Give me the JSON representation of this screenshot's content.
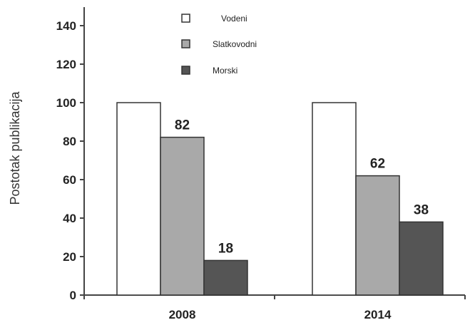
{
  "chart_data": {
    "type": "bar",
    "title": "",
    "xlabel": "",
    "ylabel": "Postotak publikacija",
    "categories": [
      "2008",
      "2014"
    ],
    "series": [
      {
        "name": "Vodeni",
        "values": [
          100,
          100
        ],
        "color": "#ffffff"
      },
      {
        "name": "Slatkovodni",
        "values": [
          82,
          62
        ],
        "color": "#a9a9a9"
      },
      {
        "name": "Morski",
        "values": [
          18,
          38
        ],
        "color": "#555555"
      }
    ],
    "data_labels": [
      {
        "series": "Slatkovodni",
        "category": "2008",
        "text": "82"
      },
      {
        "series": "Morski",
        "category": "2008",
        "text": "18"
      },
      {
        "series": "Slatkovodni",
        "category": "2014",
        "text": "62"
      },
      {
        "series": "Morski",
        "category": "2014",
        "text": "38"
      }
    ],
    "ylim": [
      0,
      150
    ],
    "yticks": [
      0,
      20,
      40,
      60,
      80,
      100,
      120,
      140
    ],
    "grid": false,
    "legend_position": "top-center"
  }
}
